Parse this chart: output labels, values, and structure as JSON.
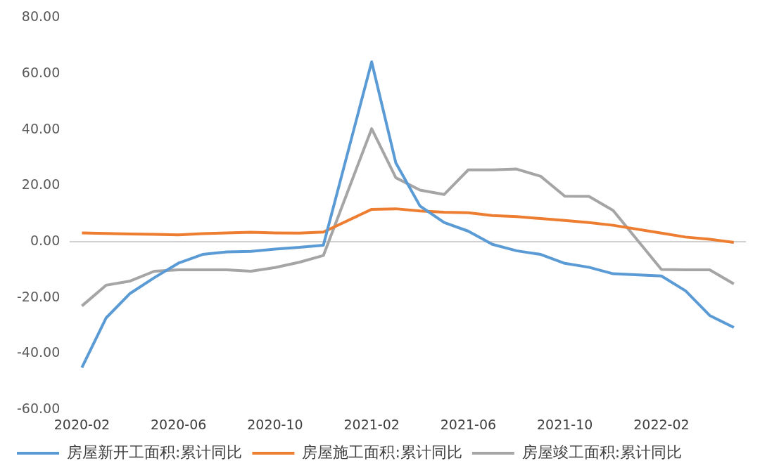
{
  "chart_data": {
    "type": "line",
    "categories": [
      "2020-02",
      null,
      null,
      null,
      "2020-06",
      null,
      null,
      null,
      "2020-10",
      null,
      null,
      null,
      "2021-02",
      null,
      null,
      null,
      "2021-06",
      null,
      null,
      null,
      "2021-10",
      null,
      null,
      null,
      "2022-02",
      null,
      null,
      null
    ],
    "series": [
      {
        "name": "房屋新开工面积:累计同比",
        "color": "#5b9bd5",
        "values": [
          -44.9,
          -27.2,
          -18.4,
          -12.8,
          -7.6,
          -4.5,
          -3.6,
          -3.4,
          -2.6,
          -2.0,
          -1.2,
          null,
          64.3,
          28.2,
          12.8,
          6.9,
          3.8,
          -0.9,
          -3.2,
          -4.5,
          -7.7,
          -9.1,
          -11.4,
          null,
          -12.2,
          -17.5,
          -26.3,
          -30.6
        ]
      },
      {
        "name": "房屋施工面积:累计同比",
        "color": "#ed7d31",
        "values": [
          3.2,
          3.0,
          2.8,
          2.7,
          2.5,
          2.9,
          3.2,
          3.4,
          3.2,
          3.1,
          3.5,
          null,
          11.6,
          11.8,
          11.0,
          10.6,
          10.4,
          9.4,
          9.0,
          8.3,
          7.6,
          6.9,
          5.9,
          null,
          3.1,
          1.7,
          0.9,
          -0.2
        ]
      },
      {
        "name": "房屋竣工面积:累计同比",
        "color": "#a5a5a5",
        "values": [
          -22.9,
          -15.5,
          -14.0,
          -10.5,
          -10.0,
          -10.0,
          -10.0,
          -10.5,
          -9.2,
          -7.3,
          -4.9,
          null,
          40.4,
          22.9,
          18.5,
          16.9,
          25.7,
          25.7,
          26.0,
          23.4,
          16.3,
          16.2,
          11.2,
          null,
          -9.9,
          -10.0,
          -10.0,
          -15.0
        ]
      }
    ],
    "ylim": [
      -60,
      80
    ],
    "yticks": [
      {
        "value": -60,
        "label": "-60.00"
      },
      {
        "value": -40,
        "label": "-40.00"
      },
      {
        "value": -20,
        "label": "-20.00"
      },
      {
        "value": 0,
        "label": "0.00"
      },
      {
        "value": 20,
        "label": "20.00"
      },
      {
        "value": 40,
        "label": "40.00"
      },
      {
        "value": 60,
        "label": "60.00"
      },
      {
        "value": 80,
        "label": "80.00"
      }
    ],
    "legend": "bottom",
    "marker": "none",
    "line_style": "solid"
  }
}
